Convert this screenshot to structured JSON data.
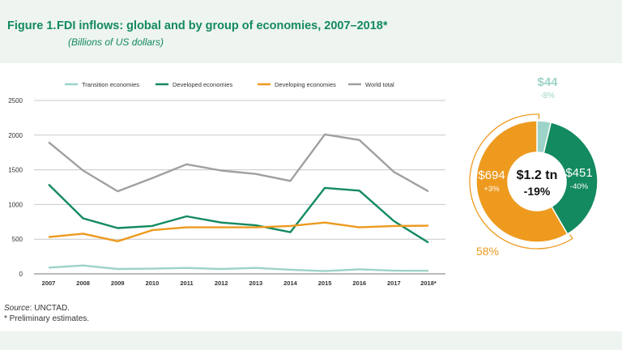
{
  "figure": {
    "label": "Figure 1.",
    "title": "FDI inflows: global and by group of economies, 2007–2018*",
    "subtitle": "(Billions of US dollars)"
  },
  "notes": {
    "source_label": "Source",
    "source_text": ": UNCTAD.",
    "footnote": "* Preliminary estimates."
  },
  "colors": {
    "transition": "#9dd3c8",
    "developed": "#138a5f",
    "developing": "#ed9a1f",
    "world": "#a0a0a0"
  },
  "chart_data": [
    {
      "type": "line",
      "categories": [
        "2007",
        "2008",
        "2009",
        "2010",
        "2011",
        "2012",
        "2013",
        "2014",
        "2015",
        "2016",
        "2017",
        "2018*"
      ],
      "ylim": [
        0,
        2500
      ],
      "yticks": [
        0,
        500,
        1000,
        1500,
        2000,
        2500
      ],
      "grid": true,
      "legend": "top",
      "series": [
        {
          "name": "Transition economies",
          "color_key": "transition",
          "values": [
            90,
            120,
            70,
            75,
            85,
            70,
            85,
            60,
            40,
            65,
            45,
            44
          ]
        },
        {
          "name": "Developed economies",
          "color_key": "developed",
          "values": [
            1290,
            800,
            660,
            690,
            830,
            740,
            700,
            600,
            1240,
            1200,
            760,
            451
          ]
        },
        {
          "name": "Developing economies",
          "color_key": "developing",
          "values": [
            530,
            580,
            470,
            630,
            670,
            670,
            670,
            690,
            740,
            670,
            690,
            694
          ]
        },
        {
          "name": "World total",
          "color_key": "world",
          "values": [
            1900,
            1490,
            1190,
            1380,
            1580,
            1490,
            1440,
            1340,
            2010,
            1930,
            1470,
            1189
          ]
        }
      ]
    },
    {
      "type": "pie",
      "center_label": "$1.2 tn",
      "center_change": "-19%",
      "slices": [
        {
          "value": 44,
          "color_key": "transition",
          "label": "$44",
          "change": "-8%"
        },
        {
          "value": 451,
          "color_key": "developed",
          "label": "$451",
          "change": "-40%"
        },
        {
          "value": 694,
          "color_key": "developing",
          "label": "$694",
          "change": "+3%"
        }
      ],
      "annotation": "58%"
    }
  ]
}
